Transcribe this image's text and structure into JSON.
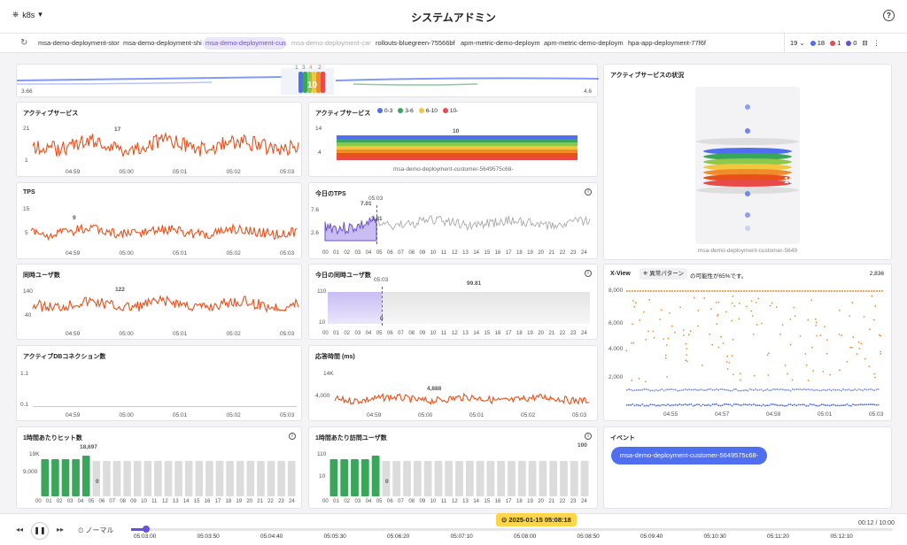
{
  "header": {
    "cluster": "k8s",
    "title": "システムアドミン",
    "help": "?"
  },
  "tabs": [
    "msa-demo-deployment-stor",
    "msa-demo-deployment-ship",
    "msa-demo-deployment-cus",
    "msa-demo-deployment-cart",
    "rollouts-bluegreen-75566bf",
    "apm-metric-demo-deployme",
    "apm-metric-demo-deployme",
    "hpa-app-deployment-77f6f"
  ],
  "tabbar_right": {
    "count": "19",
    "blue": "18",
    "red": "1",
    "purple": "0"
  },
  "colors": {
    "accent": "#6a4fd8",
    "line": "#e8501c",
    "blue": "#4f6ff0",
    "green": "#3aa65a"
  },
  "top_strip": {
    "left": "3.66",
    "right": "4.6",
    "labels": [
      "1",
      "3",
      "4",
      "2"
    ],
    "center": "10"
  },
  "active_status": {
    "title": "アクティブサービスの状況",
    "center": "10",
    "service": "msa-demo-deployment-customer-5649"
  },
  "time_ticks": [
    "04:59",
    "05:00",
    "05:01",
    "05:02",
    "05:03"
  ],
  "hours": [
    "00",
    "01",
    "02",
    "03",
    "04",
    "05",
    "06",
    "07",
    "08",
    "09",
    "10",
    "11",
    "12",
    "13",
    "14",
    "15",
    "16",
    "17",
    "18",
    "19",
    "20",
    "21",
    "22",
    "23",
    "24"
  ],
  "panels": {
    "active": {
      "title": "アクティブサービス",
      "y": [
        "21",
        "1"
      ],
      "peak": "17"
    },
    "active2": {
      "title": "アクティブサービス",
      "legend": [
        "0-3",
        "3-6",
        "6-10",
        "10-"
      ],
      "y": [
        "14",
        "4"
      ],
      "value": "10",
      "service": "msa-demo-deployment-customer-5649575c68-"
    },
    "tps": {
      "title": "TPS",
      "y": [
        "15",
        "5"
      ],
      "peak": "9"
    },
    "tps_today": {
      "title": "今日のTPS",
      "time": "05:03",
      "y": [
        "7.6",
        "2.6"
      ],
      "v1": "7.01",
      "v2": "3.81"
    },
    "users": {
      "title": "同時ユーザ数",
      "y": [
        "140",
        "40"
      ],
      "peak": "122"
    },
    "users_today": {
      "title": "今日の同時ユーザ数",
      "time": "05:03",
      "y": [
        "110",
        "10"
      ],
      "v1": "99.81",
      "v2": "0"
    },
    "xview": {
      "title": "X-View",
      "badge": "異常パターン",
      "text": "の可能性が65%です。",
      "count": "2,836",
      "y": [
        "8,000",
        "6,000",
        "4,000",
        "2,000"
      ],
      "x": [
        "04:55",
        "04:57",
        "04:59",
        "05:01",
        "05:03"
      ]
    },
    "db": {
      "title": "アクティブDBコネクション数",
      "y": [
        "1.1",
        "0.1"
      ]
    },
    "resp": {
      "title": "応答時間 (ms)",
      "y": [
        "14K",
        "4,000"
      ],
      "peak": "4,888"
    },
    "hits": {
      "title": "1時間あたりヒット数",
      "y": [
        "19K",
        "9,000"
      ],
      "peak": "18,697",
      "zero": "0"
    },
    "visits": {
      "title": "1時間あたり訪問ユーザ数",
      "y": [
        "110",
        "10"
      ],
      "peak": "100",
      "zero": "0"
    },
    "event": {
      "title": "イベント",
      "item": "msa-demo-deployment-customer-5649575c68-"
    }
  },
  "playback": {
    "speed": "ノーマル",
    "date": "2025-01-15 05:08:18",
    "progress": "00:12 / 10:00",
    "ticks": [
      "05:03:00",
      "05:03:50",
      "05:04:40",
      "05:05:30",
      "05:06:20",
      "05:07:10",
      "05:08:00",
      "05:08:50",
      "05:09:40",
      "05:10:30",
      "05:11:20",
      "05:12:10"
    ]
  }
}
